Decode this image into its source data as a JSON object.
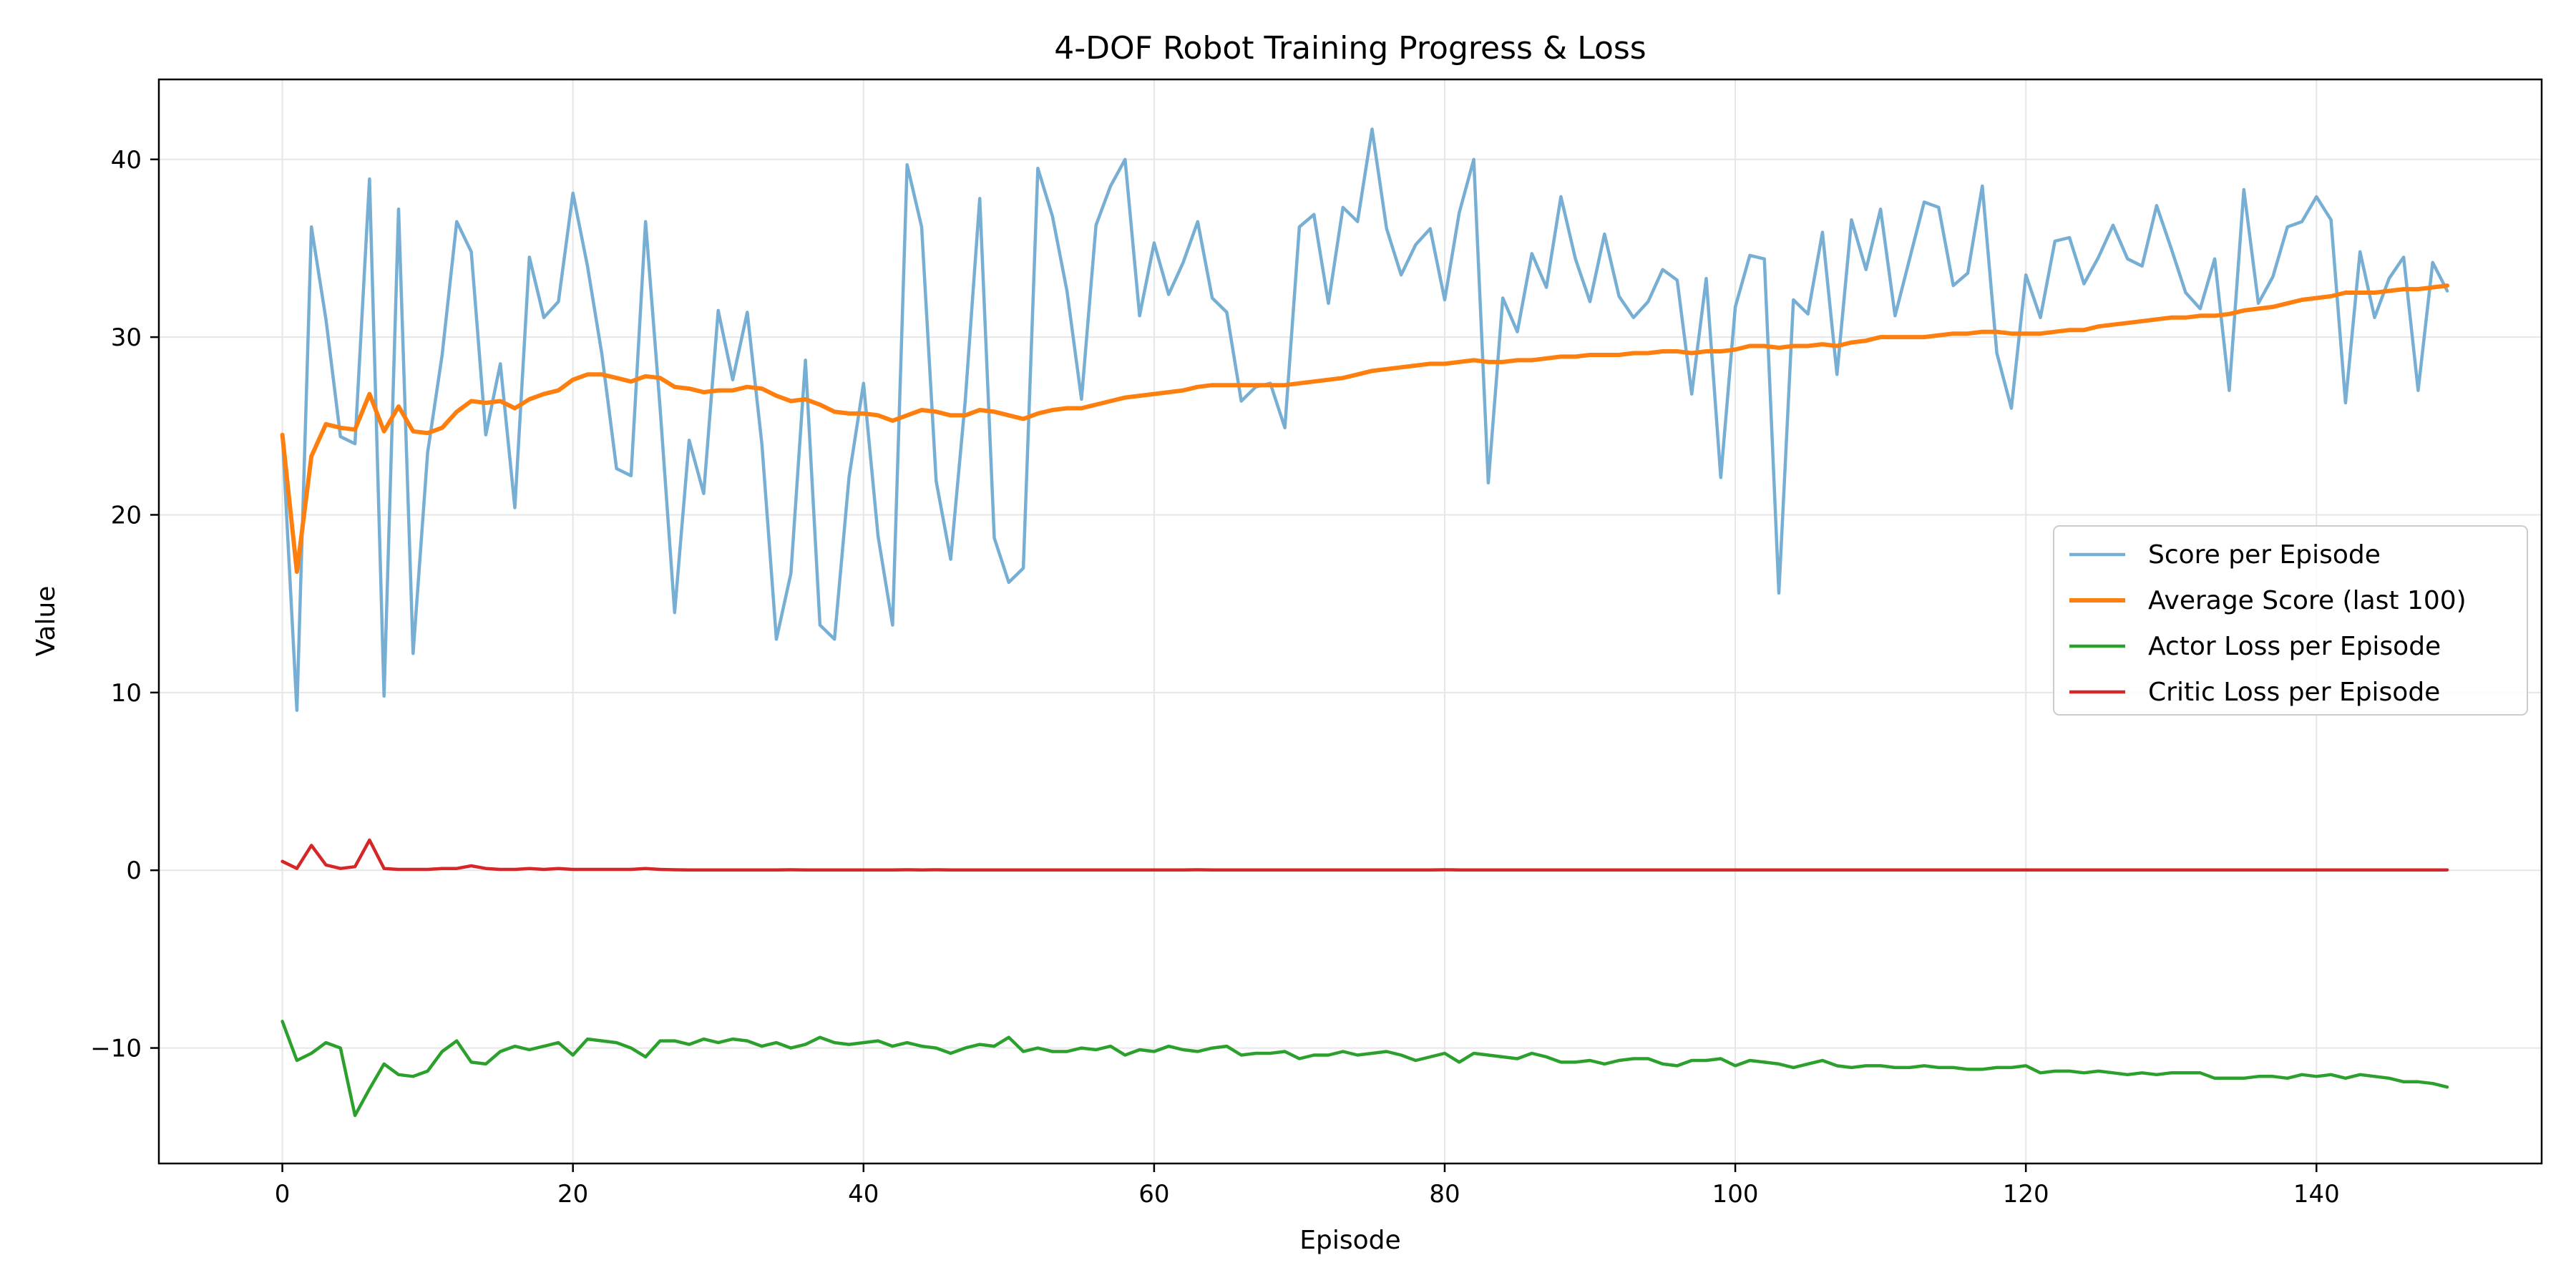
{
  "chart_data": {
    "type": "line",
    "title": "4-DOF Robot Training Progress & Loss",
    "xlabel": "Episode",
    "ylabel": "Value",
    "xlim": [
      -8.5,
      155.5
    ],
    "ylim": [
      -16.5,
      44.5
    ],
    "xticks": [
      0,
      20,
      40,
      60,
      80,
      100,
      120,
      140
    ],
    "yticks": [
      -10,
      0,
      10,
      20,
      30,
      40
    ],
    "grid": true,
    "legend_position": "center-right",
    "series": [
      {
        "name": "Score per Episode",
        "color": "#77aed3",
        "values": [
          24.5,
          9.0,
          36.2,
          31.0,
          24.4,
          24.0,
          38.9,
          9.8,
          37.2,
          12.2,
          23.5,
          29.0,
          36.5,
          34.8,
          24.5,
          28.5,
          20.4,
          34.5,
          31.1,
          32.0,
          38.1,
          34.0,
          29.0,
          22.6,
          22.2,
          36.5,
          26.0,
          14.5,
          24.2,
          21.2,
          31.5,
          27.6,
          31.4,
          24.0,
          13.0,
          16.7,
          28.7,
          13.8,
          13.0,
          22.1,
          27.4,
          18.8,
          13.8,
          39.7,
          36.2,
          21.9,
          17.5,
          26.4,
          37.8,
          18.7,
          16.2,
          17.0,
          39.5,
          36.8,
          32.6,
          26.5,
          36.3,
          38.5,
          40.0,
          31.2,
          35.3,
          32.4,
          34.2,
          36.5,
          32.2,
          31.4,
          26.4,
          27.2,
          27.4,
          24.9,
          36.2,
          36.9,
          31.9,
          37.3,
          36.5,
          41.7,
          36.1,
          33.5,
          35.2,
          36.1,
          32.1,
          37.0,
          40.0,
          21.8,
          32.2,
          30.3,
          34.7,
          32.8,
          37.9,
          34.4,
          32.0,
          35.8,
          32.3,
          31.1,
          32.0,
          33.8,
          33.2,
          26.8,
          33.3,
          22.1,
          31.7,
          34.6,
          34.4,
          15.6,
          32.1,
          31.3,
          35.9,
          27.9,
          36.6,
          33.8,
          37.2,
          31.2,
          34.4,
          37.6,
          37.3,
          32.9,
          33.6,
          38.5,
          29.1,
          26.0,
          33.5,
          31.1,
          35.4,
          35.6,
          33.0,
          34.5,
          36.3,
          34.4,
          34.0,
          37.4,
          35.0,
          32.5,
          31.6,
          34.4,
          27.0,
          38.3,
          31.9,
          33.4,
          36.2,
          36.5,
          37.9,
          36.6,
          26.3,
          34.8,
          31.1,
          33.3,
          34.5,
          27.0,
          34.2,
          32.6
        ]
      },
      {
        "name": "Average Score (last 100)",
        "color": "#ff7f0e",
        "values": [
          24.5,
          16.8,
          23.3,
          25.1,
          24.9,
          24.8,
          26.8,
          24.7,
          26.1,
          24.7,
          24.6,
          24.9,
          25.8,
          26.4,
          26.3,
          26.4,
          26.0,
          26.5,
          26.8,
          27.0,
          27.6,
          27.9,
          27.9,
          27.7,
          27.5,
          27.8,
          27.7,
          27.2,
          27.1,
          26.9,
          27.0,
          27.0,
          27.2,
          27.1,
          26.7,
          26.4,
          26.5,
          26.2,
          25.8,
          25.7,
          25.7,
          25.6,
          25.3,
          25.6,
          25.9,
          25.8,
          25.6,
          25.6,
          25.9,
          25.8,
          25.6,
          25.4,
          25.7,
          25.9,
          26.0,
          26.0,
          26.2,
          26.4,
          26.6,
          26.7,
          26.8,
          26.9,
          27.0,
          27.2,
          27.3,
          27.3,
          27.3,
          27.3,
          27.3,
          27.3,
          27.4,
          27.5,
          27.6,
          27.7,
          27.9,
          28.1,
          28.2,
          28.3,
          28.4,
          28.5,
          28.5,
          28.6,
          28.7,
          28.6,
          28.6,
          28.7,
          28.7,
          28.8,
          28.9,
          28.9,
          29.0,
          29.0,
          29.0,
          29.1,
          29.1,
          29.2,
          29.2,
          29.1,
          29.2,
          29.2,
          29.3,
          29.5,
          29.5,
          29.4,
          29.5,
          29.5,
          29.6,
          29.5,
          29.7,
          29.8,
          30.0,
          30.0,
          30.0,
          30.0,
          30.1,
          30.2,
          30.2,
          30.3,
          30.3,
          30.2,
          30.2,
          30.2,
          30.3,
          30.4,
          30.4,
          30.6,
          30.7,
          30.8,
          30.9,
          31.0,
          31.1,
          31.1,
          31.2,
          31.2,
          31.3,
          31.5,
          31.6,
          31.7,
          31.9,
          32.1,
          32.2,
          32.3,
          32.5,
          32.5,
          32.5,
          32.6,
          32.7,
          32.7,
          32.8,
          32.9
        ]
      },
      {
        "name": "Actor Loss per Episode",
        "color": "#2ca02c",
        "values": [
          -8.5,
          -10.7,
          -10.3,
          -9.7,
          -10.0,
          -13.8,
          -12.3,
          -10.9,
          -11.5,
          -11.6,
          -11.3,
          -10.2,
          -9.6,
          -10.8,
          -10.9,
          -10.2,
          -9.9,
          -10.1,
          -9.9,
          -9.7,
          -10.4,
          -9.5,
          -9.6,
          -9.7,
          -10.0,
          -10.5,
          -9.6,
          -9.6,
          -9.8,
          -9.5,
          -9.7,
          -9.5,
          -9.6,
          -9.9,
          -9.7,
          -10.0,
          -9.8,
          -9.4,
          -9.7,
          -9.8,
          -9.7,
          -9.6,
          -9.9,
          -9.7,
          -9.9,
          -10.0,
          -10.3,
          -10.0,
          -9.8,
          -9.9,
          -9.4,
          -10.2,
          -10.0,
          -10.2,
          -10.2,
          -10.0,
          -10.1,
          -9.9,
          -10.4,
          -10.1,
          -10.2,
          -9.9,
          -10.1,
          -10.2,
          -10.0,
          -9.9,
          -10.4,
          -10.3,
          -10.3,
          -10.2,
          -10.6,
          -10.4,
          -10.4,
          -10.2,
          -10.4,
          -10.3,
          -10.2,
          -10.4,
          -10.7,
          -10.5,
          -10.3,
          -10.8,
          -10.3,
          -10.4,
          -10.5,
          -10.6,
          -10.3,
          -10.5,
          -10.8,
          -10.8,
          -10.7,
          -10.9,
          -10.7,
          -10.6,
          -10.6,
          -10.9,
          -11.0,
          -10.7,
          -10.7,
          -10.6,
          -11.0,
          -10.7,
          -10.8,
          -10.9,
          -11.1,
          -10.9,
          -10.7,
          -11.0,
          -11.1,
          -11.0,
          -11.0,
          -11.1,
          -11.1,
          -11.0,
          -11.1,
          -11.1,
          -11.2,
          -11.2,
          -11.1,
          -11.1,
          -11.0,
          -11.4,
          -11.3,
          -11.3,
          -11.4,
          -11.3,
          -11.4,
          -11.5,
          -11.4,
          -11.5,
          -11.4,
          -11.4,
          -11.4,
          -11.7,
          -11.7,
          -11.7,
          -11.6,
          -11.6,
          -11.7,
          -11.5,
          -11.6,
          -11.5,
          -11.7,
          -11.5,
          -11.6,
          -11.7,
          -11.9,
          -11.9,
          -12.0,
          -12.2
        ]
      },
      {
        "name": "Critic Loss per Episode",
        "color": "#d62728",
        "values": [
          0.5,
          0.1,
          1.4,
          0.3,
          0.1,
          0.2,
          1.7,
          0.1,
          0.05,
          0.05,
          0.05,
          0.1,
          0.1,
          0.25,
          0.1,
          0.05,
          0.05,
          0.1,
          0.05,
          0.1,
          0.05,
          0.05,
          0.05,
          0.05,
          0.05,
          0.1,
          0.05,
          0.03,
          0.02,
          0.02,
          0.02,
          0.02,
          0.02,
          0.02,
          0.02,
          0.03,
          0.02,
          0.02,
          0.02,
          0.02,
          0.02,
          0.02,
          0.02,
          0.03,
          0.02,
          0.03,
          0.02,
          0.02,
          0.02,
          0.02,
          0.02,
          0.02,
          0.02,
          0.02,
          0.02,
          0.02,
          0.02,
          0.02,
          0.02,
          0.02,
          0.02,
          0.02,
          0.02,
          0.03,
          0.02,
          0.02,
          0.02,
          0.02,
          0.02,
          0.02,
          0.02,
          0.02,
          0.02,
          0.02,
          0.02,
          0.02,
          0.02,
          0.02,
          0.02,
          0.02,
          0.03,
          0.02,
          0.02,
          0.02,
          0.02,
          0.02,
          0.02,
          0.02,
          0.02,
          0.02,
          0.02,
          0.02,
          0.02,
          0.02,
          0.02,
          0.02,
          0.02,
          0.02,
          0.02,
          0.02,
          0.02,
          0.02,
          0.02,
          0.02,
          0.02,
          0.02,
          0.02,
          0.02,
          0.02,
          0.02,
          0.02,
          0.02,
          0.02,
          0.02,
          0.02,
          0.02,
          0.02,
          0.02,
          0.02,
          0.02,
          0.02,
          0.02,
          0.02,
          0.02,
          0.02,
          0.02,
          0.02,
          0.02,
          0.02,
          0.02,
          0.02,
          0.02,
          0.02,
          0.02,
          0.02,
          0.02,
          0.02,
          0.02,
          0.02,
          0.02,
          0.02,
          0.02,
          0.02,
          0.02,
          0.02,
          0.02,
          0.02,
          0.02,
          0.02,
          0.02
        ]
      }
    ]
  }
}
